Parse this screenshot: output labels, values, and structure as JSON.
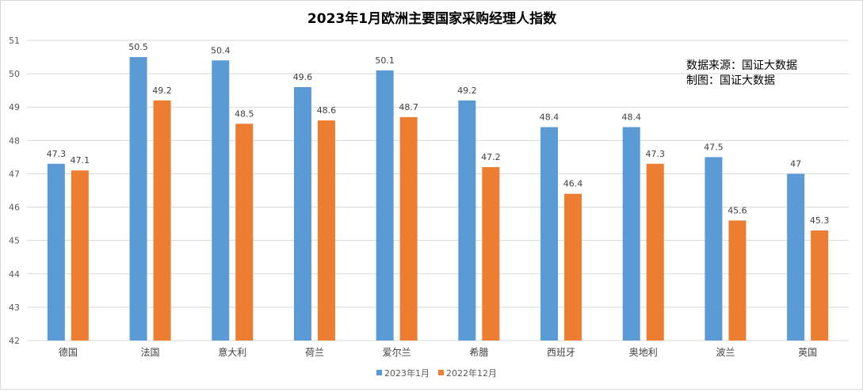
{
  "chart_data": {
    "type": "bar",
    "title": "2023年1月欧洲主要国家采购经理人指数",
    "categories": [
      "德国",
      "法国",
      "意大利",
      "荷兰",
      "爱尔兰",
      "希腊",
      "西班牙",
      "奥地利",
      "波兰",
      "英国"
    ],
    "series": [
      {
        "name": "2023年1月",
        "color": "#5b9bd5",
        "values": [
          47.3,
          50.5,
          50.4,
          49.6,
          50.1,
          49.2,
          48.4,
          48.4,
          47.5,
          47
        ]
      },
      {
        "name": "2022年12月",
        "color": "#ed7d31",
        "values": [
          47.1,
          49.2,
          48.5,
          48.6,
          48.7,
          47.2,
          46.4,
          47.3,
          45.6,
          45.3
        ]
      }
    ],
    "ylim": [
      42,
      51
    ],
    "yticks": [
      42,
      43,
      44,
      45,
      46,
      47,
      48,
      49,
      50,
      51
    ],
    "grid": true,
    "legend": "bottom",
    "data_labels": true
  },
  "annotation": {
    "line1": "数据来源：国证大数据",
    "line2": "制图：国证大数据"
  }
}
